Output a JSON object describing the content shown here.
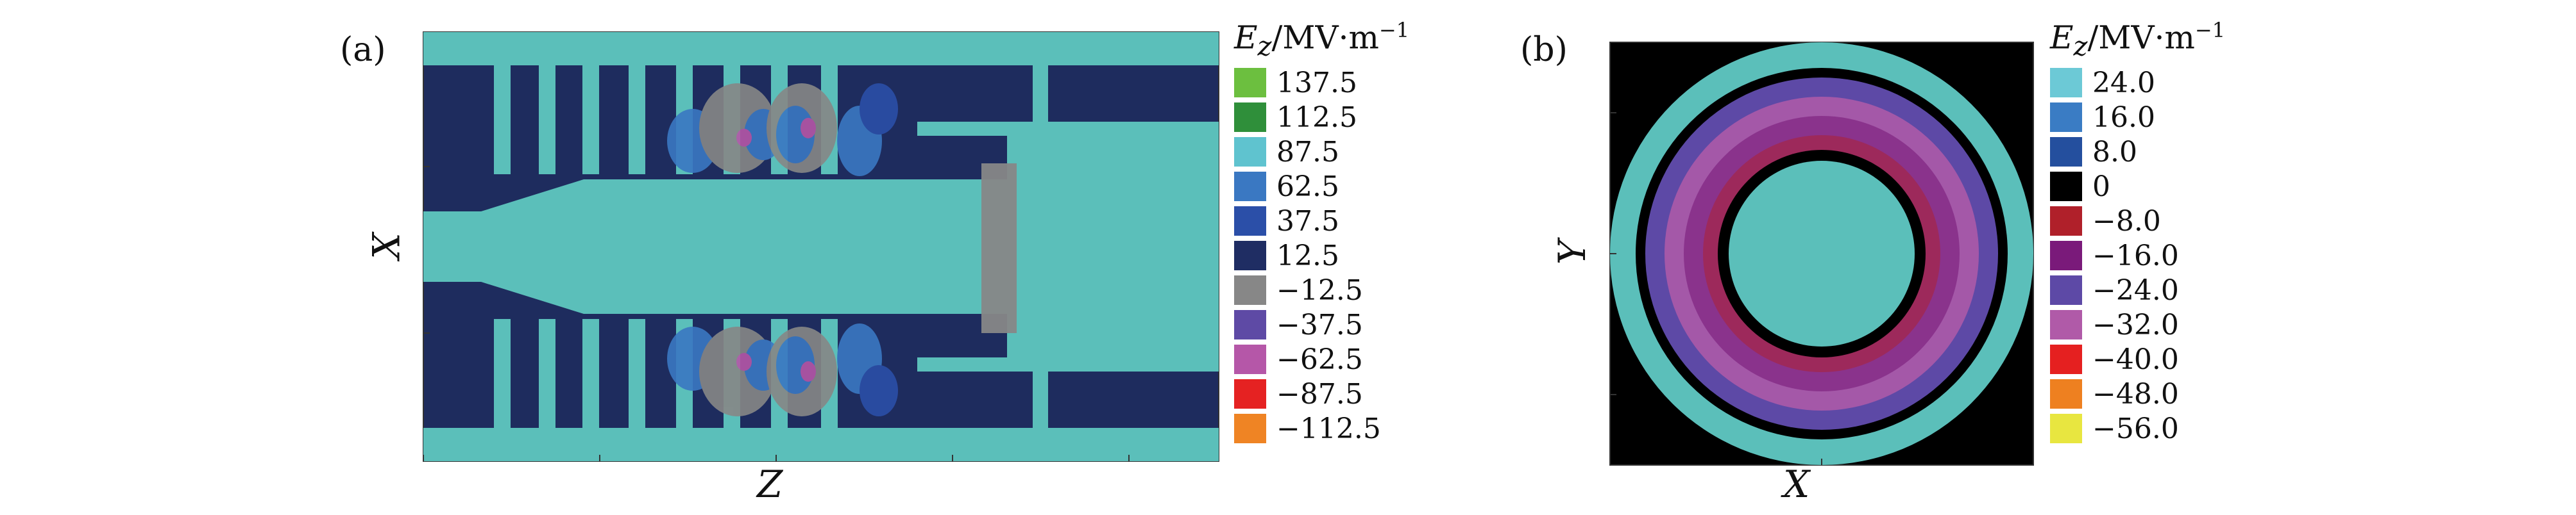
{
  "panel_a": {
    "label": "(a)",
    "xlabel": "Z",
    "ylabel": "X",
    "legend_title_prefix": "E",
    "legend_title_sub": "z",
    "legend_title_unit": "/MV·m",
    "legend_title_exp": "−1",
    "legend": [
      {
        "value": "137.5",
        "color": "#6cbf3f"
      },
      {
        "value": "112.5",
        "color": "#2f8f3a"
      },
      {
        "value": "87.5",
        "color": "#5fc3cf"
      },
      {
        "value": "62.5",
        "color": "#3a78c2"
      },
      {
        "value": "37.5",
        "color": "#2b4fa8"
      },
      {
        "value": "12.5",
        "color": "#1f2d63"
      },
      {
        "value": "−12.5",
        "color": "#878787"
      },
      {
        "value": "−37.5",
        "color": "#5e4aa5"
      },
      {
        "value": "−62.5",
        "color": "#b557a8"
      },
      {
        "value": "−87.5",
        "color": "#e52222"
      },
      {
        "value": "−112.5",
        "color": "#ef8424"
      }
    ]
  },
  "panel_b": {
    "label": "(b)",
    "xlabel": "X",
    "ylabel": "Y",
    "legend_title_prefix": "E",
    "legend_title_sub": "z",
    "legend_title_unit": "/MV·m",
    "legend_title_exp": "−1",
    "legend": [
      {
        "value": "24.0",
        "color": "#6cc9d6"
      },
      {
        "value": "16.0",
        "color": "#3a7cc4"
      },
      {
        "value": "8.0",
        "color": "#244f9e"
      },
      {
        "value": "0",
        "color": "#000000"
      },
      {
        "value": "−8.0",
        "color": "#b0202a"
      },
      {
        "value": "−16.0",
        "color": "#7a1a7a"
      },
      {
        "value": "−24.0",
        "color": "#5d49a6"
      },
      {
        "value": "−32.0",
        "color": "#b05aa8"
      },
      {
        "value": "−40.0",
        "color": "#e52020"
      },
      {
        "value": "−48.0",
        "color": "#ee8020"
      },
      {
        "value": "−56.0",
        "color": "#e8e640"
      }
    ]
  },
  "colors": {
    "cyan_field": "#5bbfba",
    "dark_navy": "#1e2c5e",
    "gray": "#8a8a8a",
    "black_bg": "#000000"
  }
}
